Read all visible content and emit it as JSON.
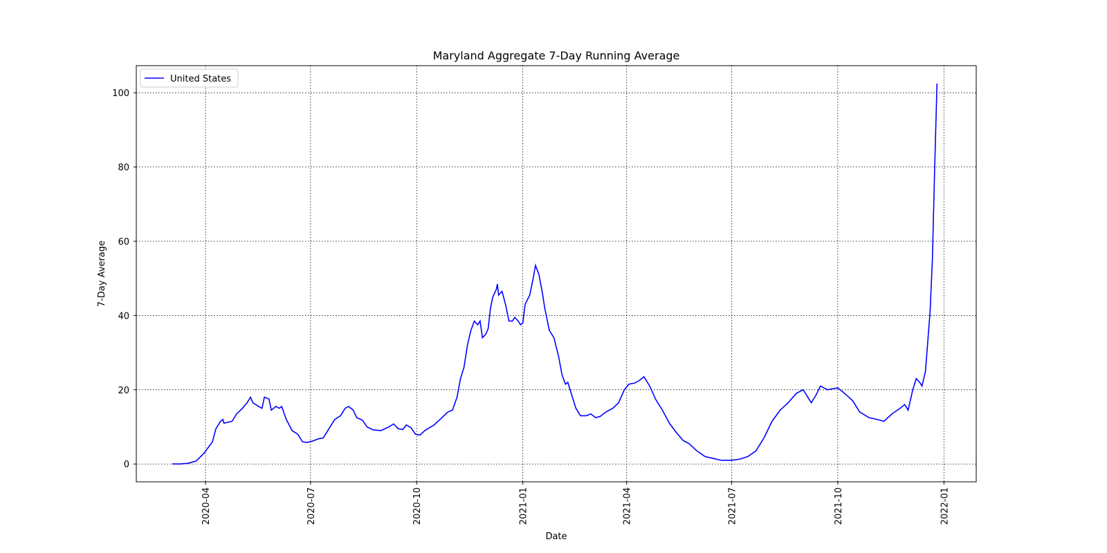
{
  "chart_data": {
    "type": "line",
    "title": "Maryland Aggregate 7-Day Running Average",
    "xlabel": "Date",
    "ylabel": "7-Day Average",
    "x": [
      "2020-03-03",
      "2020-03-10",
      "2020-03-17",
      "2020-03-24",
      "2020-03-31",
      "2020-04-07",
      "2020-04-10",
      "2020-04-14",
      "2020-04-16",
      "2020-04-17",
      "2020-04-24",
      "2020-04-28",
      "2020-05-03",
      "2020-05-07",
      "2020-05-10",
      "2020-05-12",
      "2020-05-17",
      "2020-05-20",
      "2020-05-22",
      "2020-05-26",
      "2020-05-28",
      "2020-06-01",
      "2020-06-04",
      "2020-06-06",
      "2020-06-10",
      "2020-06-15",
      "2020-06-20",
      "2020-06-24",
      "2020-06-28",
      "2020-07-03",
      "2020-07-08",
      "2020-07-12",
      "2020-07-17",
      "2020-07-22",
      "2020-07-27",
      "2020-07-31",
      "2020-08-03",
      "2020-08-07",
      "2020-08-10",
      "2020-08-15",
      "2020-08-19",
      "2020-08-24",
      "2020-08-31",
      "2020-09-07",
      "2020-09-11",
      "2020-09-15",
      "2020-09-19",
      "2020-09-22",
      "2020-09-26",
      "2020-09-30",
      "2020-10-04",
      "2020-10-08",
      "2020-10-16",
      "2020-10-23",
      "2020-10-28",
      "2020-11-01",
      "2020-11-05",
      "2020-11-08",
      "2020-11-11",
      "2020-11-14",
      "2020-11-17",
      "2020-11-20",
      "2020-11-23",
      "2020-11-25",
      "2020-11-27",
      "2020-11-30",
      "2020-12-02",
      "2020-12-04",
      "2020-12-06",
      "2020-12-09",
      "2020-12-10",
      "2020-12-11",
      "2020-12-14",
      "2020-12-17",
      "2020-12-20",
      "2020-12-23",
      "2020-12-25",
      "2020-12-28",
      "2020-12-30",
      "2021-01-01",
      "2021-01-03",
      "2021-01-07",
      "2021-01-10",
      "2021-01-12",
      "2021-01-15",
      "2021-01-18",
      "2021-01-20",
      "2021-01-24",
      "2021-01-28",
      "2021-02-01",
      "2021-02-04",
      "2021-02-07",
      "2021-02-09",
      "2021-02-12",
      "2021-02-16",
      "2021-02-20",
      "2021-02-25",
      "2021-03-01",
      "2021-03-05",
      "2021-03-09",
      "2021-03-14",
      "2021-03-20",
      "2021-03-25",
      "2021-03-30",
      "2021-04-03",
      "2021-04-08",
      "2021-04-12",
      "2021-04-16",
      "2021-04-21",
      "2021-04-26",
      "2021-05-02",
      "2021-05-08",
      "2021-05-14",
      "2021-05-20",
      "2021-05-25",
      "2021-06-01",
      "2021-06-08",
      "2021-06-15",
      "2021-06-22",
      "2021-07-01",
      "2021-07-08",
      "2021-07-15",
      "2021-07-22",
      "2021-07-29",
      "2021-08-05",
      "2021-08-12",
      "2021-08-19",
      "2021-08-26",
      "2021-09-01",
      "2021-09-05",
      "2021-09-08",
      "2021-09-12",
      "2021-09-16",
      "2021-09-22",
      "2021-10-01",
      "2021-10-07",
      "2021-10-14",
      "2021-10-20",
      "2021-10-28",
      "2021-11-04",
      "2021-11-10",
      "2021-11-17",
      "2021-11-24",
      "2021-11-28",
      "2021-12-01",
      "2021-12-05",
      "2021-12-08",
      "2021-12-11",
      "2021-12-13",
      "2021-12-16",
      "2021-12-18",
      "2021-12-20",
      "2021-12-22",
      "2021-12-24",
      "2021-12-26"
    ],
    "series": [
      {
        "name": "United States",
        "color": "#0000ff",
        "values": [
          0,
          0,
          0.2,
          0.8,
          3,
          6,
          9.5,
          11.5,
          12,
          11,
          11.5,
          13.5,
          15,
          16.5,
          18,
          16.5,
          15.5,
          15,
          18,
          17.5,
          14.5,
          15.5,
          15,
          15.5,
          12,
          9,
          8,
          6,
          5.8,
          6.2,
          6.8,
          7,
          9.5,
          12,
          13,
          15,
          15.5,
          14.5,
          12.5,
          11.8,
          10,
          9.2,
          9,
          10,
          10.8,
          9.5,
          9.3,
          10.5,
          9.8,
          8,
          7.8,
          9,
          10.5,
          12.5,
          14,
          14.5,
          18,
          23,
          26,
          32,
          36,
          38.5,
          37.5,
          38.5,
          34,
          35,
          36.5,
          42,
          45,
          47,
          48.5,
          45.5,
          46.5,
          43,
          38.5,
          38.5,
          39.5,
          38.5,
          37.5,
          38,
          43,
          45.5,
          50,
          53.5,
          51,
          46,
          42,
          36,
          34,
          29,
          24,
          21.5,
          22,
          19,
          15,
          13,
          13,
          13.5,
          12.5,
          12.8,
          14,
          15,
          16.5,
          20,
          21.5,
          21.8,
          22.5,
          23.5,
          21,
          17.5,
          14.5,
          11,
          8.5,
          6.3,
          5.5,
          3.5,
          2,
          1.5,
          1,
          1,
          1.3,
          2,
          3.5,
          7,
          11.5,
          14.5,
          16.5,
          19,
          20,
          18,
          16.5,
          18.5,
          21,
          20,
          20.5,
          19,
          17,
          14,
          12.5,
          12,
          11.5,
          13.5,
          15,
          16,
          14.5,
          20,
          23,
          22,
          21,
          25,
          33,
          41,
          55,
          80,
          102.5
        ]
      }
    ],
    "xlim": [
      "2020-02-01",
      "2022-01-29"
    ],
    "xticks": [
      {
        "value": "2020-04-01",
        "label": "2020-04"
      },
      {
        "value": "2020-07-01",
        "label": "2020-07"
      },
      {
        "value": "2020-10-01",
        "label": "2020-10"
      },
      {
        "value": "2021-01-01",
        "label": "2021-01"
      },
      {
        "value": "2021-04-01",
        "label": "2021-04"
      },
      {
        "value": "2021-07-01",
        "label": "2021-07"
      },
      {
        "value": "2021-10-01",
        "label": "2021-10"
      },
      {
        "value": "2022-01-01",
        "label": "2022-01"
      }
    ],
    "ylim": [
      -4.8,
      107.3
    ],
    "yticks": [
      0,
      20,
      40,
      60,
      80,
      100
    ],
    "grid": true,
    "legend": "upper left"
  }
}
